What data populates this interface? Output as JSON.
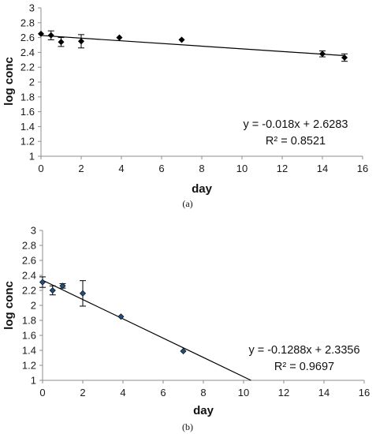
{
  "chart_data": [
    {
      "type": "scatter",
      "caption": "(a)",
      "xlabel": "day",
      "ylabel": "log conc",
      "xlim": [
        0,
        16
      ],
      "ylim": [
        1,
        3
      ],
      "xticks": [
        0,
        2,
        4,
        6,
        8,
        10,
        12,
        14,
        16
      ],
      "yticks": [
        1,
        1.2,
        1.4,
        1.6,
        1.8,
        2,
        2.2,
        2.4,
        2.6,
        2.8,
        3
      ],
      "marker": "diamond",
      "marker_color": "#000000",
      "grid": false,
      "points": [
        {
          "x": 0,
          "y": 2.65,
          "err": 0
        },
        {
          "x": 0.5,
          "y": 2.63,
          "err": 0.06
        },
        {
          "x": 1,
          "y": 2.54,
          "err": 0.06
        },
        {
          "x": 2,
          "y": 2.55,
          "err": 0.09
        },
        {
          "x": 3.9,
          "y": 2.6,
          "err": 0
        },
        {
          "x": 7,
          "y": 2.57,
          "err": 0
        },
        {
          "x": 14,
          "y": 2.38,
          "err": 0.04
        },
        {
          "x": 15.1,
          "y": 2.33,
          "err": 0.05
        }
      ],
      "trendline": {
        "slope": -0.018,
        "intercept": 2.6283,
        "x_range": [
          0,
          15.1
        ],
        "equation": "y = -0.018x + 2.6283",
        "r_squared": "R² = 0.8521"
      }
    },
    {
      "type": "scatter",
      "caption": "(b)",
      "xlabel": "day",
      "ylabel": "log conc",
      "xlim": [
        0,
        16
      ],
      "ylim": [
        1,
        3
      ],
      "xticks": [
        0,
        2,
        4,
        6,
        8,
        10,
        12,
        14,
        16
      ],
      "yticks": [
        1,
        1.2,
        1.4,
        1.6,
        1.8,
        2,
        2.2,
        2.4,
        2.6,
        2.8,
        3
      ],
      "marker": "diamond",
      "marker_color": "#1f4e79",
      "grid": false,
      "points": [
        {
          "x": 0,
          "y": 2.31,
          "err": 0.07
        },
        {
          "x": 0.5,
          "y": 2.2,
          "err": 0.06
        },
        {
          "x": 1,
          "y": 2.26,
          "err": 0.03
        },
        {
          "x": 2,
          "y": 2.16,
          "err": 0.17
        },
        {
          "x": 3.9,
          "y": 1.85,
          "err": 0
        },
        {
          "x": 7,
          "y": 1.39,
          "err": 0
        }
      ],
      "trendline": {
        "slope": -0.1288,
        "intercept": 2.3356,
        "x_range": [
          0,
          16
        ],
        "equation": "y = -0.1288x + 2.3356",
        "r_squared": "R² = 0.9697"
      }
    }
  ]
}
